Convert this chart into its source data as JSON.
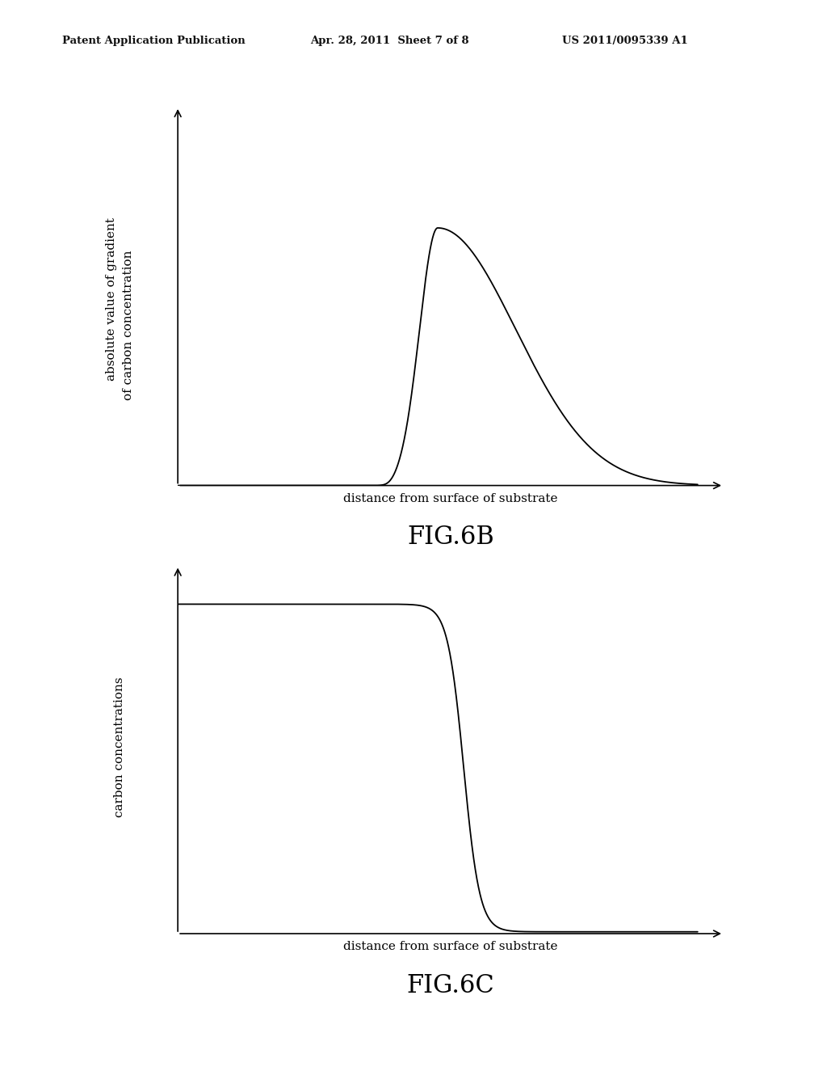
{
  "background_color": "#ffffff",
  "header_left": "Patent Application Publication",
  "header_mid": "Apr. 28, 2011  Sheet 7 of 8",
  "header_right": "US 2011/0095339 A1",
  "fig6b": {
    "ylabel1": "absolute value of gradient",
    "ylabel2": "of carbon concentration",
    "xlabel": "distance from surface of substrate",
    "title": "FIG.6B"
  },
  "fig6c": {
    "ylabel": "carbon concentrations",
    "xlabel": "distance from surface of substrate",
    "title": "FIG.6C"
  }
}
